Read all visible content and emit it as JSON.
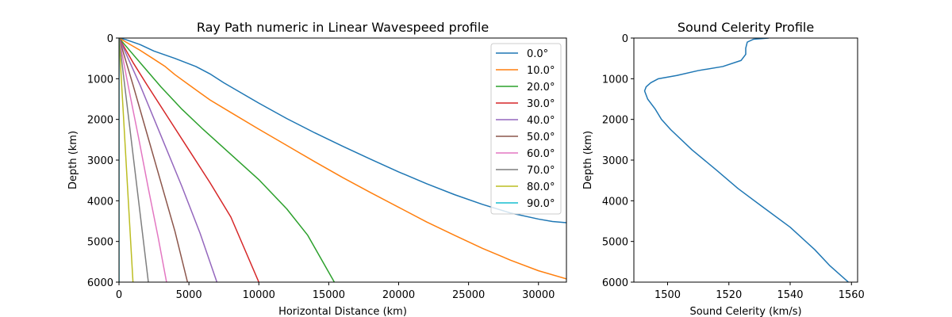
{
  "chart_data": [
    {
      "type": "line",
      "title": "Ray Path numeric in Linear Wavespeed profile",
      "xlabel": "Horizontal Distance (km)",
      "ylabel": "Depth (km)",
      "xlim": [
        0,
        32000
      ],
      "ylim": [
        6000,
        0
      ],
      "y_inverted": true,
      "grid": false,
      "legend_position": "top-right",
      "xticks": [
        "0",
        "5000",
        "10000",
        "15000",
        "20000",
        "25000",
        "30000"
      ],
      "xtick_values": [
        0,
        5000,
        10000,
        15000,
        20000,
        25000,
        30000
      ],
      "yticks": [
        "0",
        "1000",
        "2000",
        "3000",
        "4000",
        "5000",
        "6000"
      ],
      "ytick_values": [
        0,
        1000,
        2000,
        3000,
        4000,
        5000,
        6000
      ],
      "series": [
        {
          "name": "0.0°",
          "color": "#1f77b4",
          "points": [
            [
              0,
              0
            ],
            [
              500,
              40
            ],
            [
              1500,
              160
            ],
            [
              2500,
              320
            ],
            [
              4000,
              500
            ],
            [
              5500,
              700
            ],
            [
              6500,
              880
            ],
            [
              7500,
              1100
            ],
            [
              8500,
              1300
            ],
            [
              10000,
              1600
            ],
            [
              12000,
              1980
            ],
            [
              14000,
              2330
            ],
            [
              16000,
              2660
            ],
            [
              18000,
              2980
            ],
            [
              20000,
              3290
            ],
            [
              22000,
              3580
            ],
            [
              24000,
              3850
            ],
            [
              26000,
              4090
            ],
            [
              28000,
              4300
            ],
            [
              30000,
              4450
            ],
            [
              31000,
              4510
            ],
            [
              32000,
              4540
            ]
          ]
        },
        {
          "name": "10.0°",
          "color": "#ff7f0e",
          "points": [
            [
              0,
              0
            ],
            [
              500,
              100
            ],
            [
              1500,
              300
            ],
            [
              2500,
              520
            ],
            [
              3300,
              700
            ],
            [
              4000,
              900
            ],
            [
              5000,
              1150
            ],
            [
              6500,
              1520
            ],
            [
              8000,
              1830
            ],
            [
              10000,
              2240
            ],
            [
              12000,
              2640
            ],
            [
              14000,
              3040
            ],
            [
              16000,
              3430
            ],
            [
              18000,
              3800
            ],
            [
              20000,
              4160
            ],
            [
              22000,
              4520
            ],
            [
              24000,
              4850
            ],
            [
              26000,
              5170
            ],
            [
              28000,
              5460
            ],
            [
              30000,
              5720
            ],
            [
              32000,
              5920
            ]
          ]
        },
        {
          "name": "20.0°",
          "color": "#2ca02c",
          "points": [
            [
              0,
              0
            ],
            [
              800,
              320
            ],
            [
              1800,
              720
            ],
            [
              3000,
              1200
            ],
            [
              4500,
              1750
            ],
            [
              6000,
              2240
            ],
            [
              8000,
              2860
            ],
            [
              10000,
              3480
            ],
            [
              12000,
              4200
            ],
            [
              13500,
              4850
            ],
            [
              15400,
              6000
            ]
          ]
        },
        {
          "name": "30.0°",
          "color": "#d62728",
          "points": [
            [
              0,
              0
            ],
            [
              1000,
              600
            ],
            [
              2000,
              1150
            ],
            [
              3500,
              1950
            ],
            [
              5000,
              2750
            ],
            [
              6500,
              3550
            ],
            [
              8000,
              4400
            ],
            [
              10000,
              6000
            ]
          ]
        },
        {
          "name": "40.0°",
          "color": "#9467bd",
          "points": [
            [
              0,
              0
            ],
            [
              1500,
              1150
            ],
            [
              3000,
              2400
            ],
            [
              4500,
              3650
            ],
            [
              5800,
              4800
            ],
            [
              7000,
              6000
            ]
          ]
        },
        {
          "name": "50.0°",
          "color": "#8c564b",
          "points": [
            [
              0,
              0
            ],
            [
              1000,
              1150
            ],
            [
              2000,
              2350
            ],
            [
              3000,
              3550
            ],
            [
              4000,
              4750
            ],
            [
              4900,
              6000
            ]
          ]
        },
        {
          "name": "60.0°",
          "color": "#e377c2",
          "points": [
            [
              0,
              0
            ],
            [
              700,
              1250
            ],
            [
              1400,
              2450
            ],
            [
              2100,
              3700
            ],
            [
              2800,
              4900
            ],
            [
              3400,
              6000
            ]
          ]
        },
        {
          "name": "70.0°",
          "color": "#7f7f7f",
          "points": [
            [
              0,
              0
            ],
            [
              700,
              2000
            ],
            [
              1400,
              4000
            ],
            [
              2100,
              6000
            ]
          ]
        },
        {
          "name": "80.0°",
          "color": "#bcbd22",
          "points": [
            [
              0,
              0
            ],
            [
              500,
              3000
            ],
            [
              1000,
              6000
            ]
          ]
        },
        {
          "name": "90.0°",
          "color": "#17becf",
          "points": [
            [
              0,
              0
            ],
            [
              0,
              6000
            ]
          ]
        }
      ]
    },
    {
      "type": "line",
      "title": "Sound Celerity Profile",
      "xlabel": "Sound Celerity (km/s)",
      "ylabel": "Depth (km)",
      "xlim": [
        1489,
        1562
      ],
      "ylim": [
        6000,
        0
      ],
      "y_inverted": true,
      "grid": false,
      "xticks": [
        "1500",
        "1520",
        "1540",
        "1560"
      ],
      "xtick_values": [
        1500,
        1520,
        1540,
        1560
      ],
      "yticks": [
        "0",
        "1000",
        "2000",
        "3000",
        "4000",
        "5000",
        "6000"
      ],
      "ytick_values": [
        0,
        1000,
        2000,
        3000,
        4000,
        5000,
        6000
      ],
      "series": [
        {
          "color": "#1f77b4",
          "points": [
            [
              1533,
              0
            ],
            [
              1528,
              30
            ],
            [
              1526,
              100
            ],
            [
              1525.5,
              250
            ],
            [
              1525.5,
              400
            ],
            [
              1524,
              550
            ],
            [
              1518,
              700
            ],
            [
              1510,
              800
            ],
            [
              1503,
              920
            ],
            [
              1497,
              1000
            ],
            [
              1494.5,
              1100
            ],
            [
              1493,
              1200
            ],
            [
              1492.5,
              1300
            ],
            [
              1493.5,
              1500
            ],
            [
              1496,
              1750
            ],
            [
              1498,
              2000
            ],
            [
              1501,
              2250
            ],
            [
              1508,
              2750
            ],
            [
              1516,
              3250
            ],
            [
              1523,
              3700
            ],
            [
              1531,
              4150
            ],
            [
              1540,
              4650
            ],
            [
              1548,
              5200
            ],
            [
              1553,
              5600
            ],
            [
              1559,
              6000
            ]
          ]
        }
      ]
    }
  ]
}
